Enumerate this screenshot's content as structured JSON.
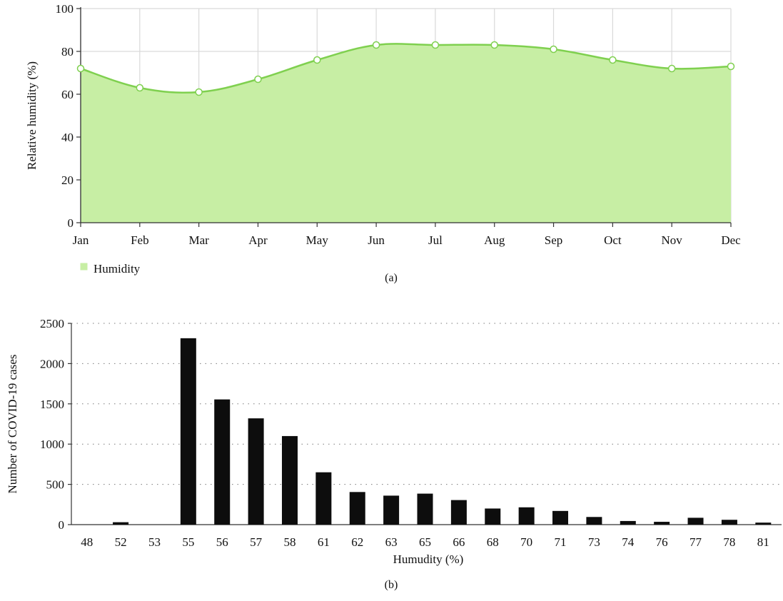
{
  "colors": {
    "area_fill": "#c7eea4",
    "area_line": "#7fd04f",
    "grid_a": "#d9d9d9",
    "grid_b": "#e8e8e8",
    "bar": "#0d0d0d",
    "marker_fill": "#ffffff"
  },
  "panel_a_caption": "(a)",
  "panel_b_caption": "(b)",
  "chart_data": [
    {
      "type": "area",
      "title": "",
      "xlabel": "",
      "ylabel": "Relative humidity (%)",
      "categories": [
        "Jan",
        "Feb",
        "Mar",
        "Apr",
        "May",
        "Jun",
        "Jul",
        "Aug",
        "Sep",
        "Oct",
        "Nov",
        "Dec"
      ],
      "series": [
        {
          "name": "Humidity",
          "values": [
            72,
            63,
            61,
            67,
            76,
            83,
            83,
            83,
            81,
            76,
            72,
            73
          ]
        }
      ],
      "ylim": [
        0,
        100
      ],
      "yticks": [
        "0",
        "20",
        "40",
        "60",
        "80",
        "100"
      ],
      "grid": true,
      "smooth": true,
      "markers": true,
      "legend": "bottom-left"
    },
    {
      "type": "bar",
      "title": "",
      "xlabel": "Humudity (%)",
      "ylabel": "Number of COVID-19 cases",
      "categories": [
        "48",
        "52",
        "53",
        "55",
        "56",
        "57",
        "58",
        "61",
        "62",
        "63",
        "65",
        "66",
        "68",
        "70",
        "71",
        "73",
        "74",
        "76",
        "77",
        "78",
        "81"
      ],
      "values": [
        0,
        30,
        0,
        2315,
        1555,
        1320,
        1100,
        650,
        405,
        360,
        385,
        305,
        200,
        215,
        170,
        95,
        45,
        35,
        85,
        60,
        25
      ],
      "ylim": [
        0,
        2500
      ],
      "yticks": [
        "0",
        "500",
        "1000",
        "1500",
        "2000",
        "2500"
      ],
      "grid": "horizontal dotted",
      "legend": "none"
    }
  ]
}
